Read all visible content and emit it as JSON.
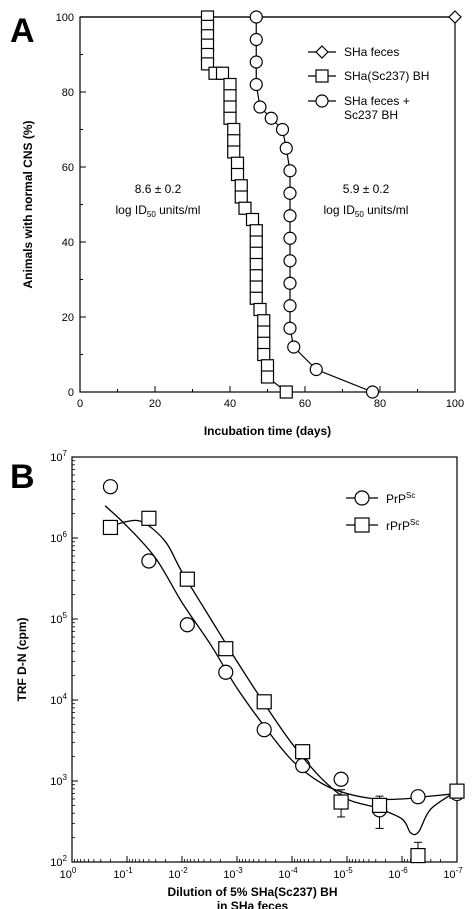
{
  "panels": {
    "a_letter": "A",
    "b_letter": "B"
  },
  "chart_data": [
    {
      "type": "line",
      "panel": "A",
      "xlabel": "Incubation time (days)",
      "ylabel": "Animals with normal CNS (%)",
      "xlim": [
        0,
        100
      ],
      "ylim": [
        0,
        100
      ],
      "xticks": [
        0,
        20,
        40,
        60,
        80,
        100
      ],
      "yticks": [
        0,
        20,
        40,
        60,
        80,
        100
      ],
      "grid": false,
      "legend_position": "top-right",
      "legend_entries": [
        {
          "marker": "diamond",
          "lines": [
            "SHa feces"
          ]
        },
        {
          "marker": "square",
          "lines": [
            "SHa(Sc237) BH"
          ]
        },
        {
          "marker": "circle",
          "lines": [
            "SHa feces +",
            "Sc237 BH"
          ]
        }
      ],
      "annotations": [
        {
          "line1": "8.6 ± 0.2",
          "line2_pre": "log ID",
          "line2_sub": "50",
          "line2_post": " units/ml"
        },
        {
          "line1": "5.9 ± 0.2",
          "line2_pre": "log ID",
          "line2_sub": "50",
          "line2_post": " units/ml"
        }
      ],
      "series": [
        {
          "name": "SHa feces",
          "marker": "diamond",
          "points": [
            [
              0,
              100
            ],
            [
              100,
              100
            ]
          ],
          "marker_points": [
            [
              100,
              100
            ]
          ]
        },
        {
          "name": "SHa(Sc237) BH",
          "marker": "square",
          "points": [
            [
              34,
              100
            ],
            [
              34,
              97.5
            ],
            [
              34,
              95
            ],
            [
              34,
              92.5
            ],
            [
              34,
              90
            ],
            [
              34,
              87.5
            ],
            [
              36,
              85
            ],
            [
              38,
              85
            ],
            [
              40,
              82
            ],
            [
              40,
              79
            ],
            [
              40,
              76
            ],
            [
              40,
              73
            ],
            [
              41,
              70
            ],
            [
              41,
              67
            ],
            [
              41,
              64
            ],
            [
              42,
              61
            ],
            [
              42,
              58
            ],
            [
              43,
              55
            ],
            [
              43,
              52
            ],
            [
              44,
              49
            ],
            [
              46,
              46
            ],
            [
              47,
              43
            ],
            [
              47,
              40
            ],
            [
              47,
              37
            ],
            [
              47,
              34
            ],
            [
              47,
              31
            ],
            [
              47,
              28
            ],
            [
              47,
              25
            ],
            [
              48,
              22
            ],
            [
              49,
              19
            ],
            [
              49,
              16
            ],
            [
              49,
              13
            ],
            [
              49,
              10
            ],
            [
              50,
              7
            ],
            [
              50,
              4
            ],
            [
              55,
              0
            ]
          ]
        },
        {
          "name": "SHa feces + Sc237 BH",
          "marker": "circle",
          "points": [
            [
              47,
              100
            ],
            [
              47,
              94
            ],
            [
              47,
              88
            ],
            [
              47,
              82
            ],
            [
              48,
              76
            ],
            [
              51,
              73
            ],
            [
              54,
              70
            ],
            [
              55,
              65
            ],
            [
              56,
              59
            ],
            [
              56,
              53
            ],
            [
              56,
              47
            ],
            [
              56,
              41
            ],
            [
              56,
              35
            ],
            [
              56,
              29
            ],
            [
              56,
              23
            ],
            [
              56,
              17
            ],
            [
              57,
              12
            ],
            [
              63,
              6
            ],
            [
              78,
              0
            ]
          ]
        }
      ]
    },
    {
      "type": "scatter",
      "panel": "B",
      "xlabel_lines": [
        "Dilution of 5% SHa(Sc237) BH",
        "in SHa feces"
      ],
      "ylabel": "TRF D-N (cpm)",
      "x_scale": "log-reversed",
      "y_scale": "log",
      "xlim": [
        1,
        1e-07
      ],
      "ylim": [
        100,
        10000000
      ],
      "xtick_labels": [
        {
          "base": "10",
          "exp": "0"
        },
        {
          "base": "10",
          "exp": "-1"
        },
        {
          "base": "10",
          "exp": "-2"
        },
        {
          "base": "10",
          "exp": "-3"
        },
        {
          "base": "10",
          "exp": "-4"
        },
        {
          "base": "10",
          "exp": "-5"
        },
        {
          "base": "10",
          "exp": "-6"
        },
        {
          "base": "10",
          "exp": "-7"
        }
      ],
      "ytick_labels": [
        {
          "base": "10",
          "exp": "2"
        },
        {
          "base": "10",
          "exp": "3"
        },
        {
          "base": "10",
          "exp": "4"
        },
        {
          "base": "10",
          "exp": "5"
        },
        {
          "base": "10",
          "exp": "6"
        },
        {
          "base": "10",
          "exp": "7"
        }
      ],
      "grid": false,
      "legend_position": "top-right",
      "legend_entries": [
        {
          "marker": "circle",
          "text": "PrP",
          "sup": "Sc"
        },
        {
          "marker": "square",
          "text": "rPrP",
          "sup": "Sc"
        }
      ],
      "series": [
        {
          "name": "PrPSc",
          "marker": "circle",
          "points": [
            {
              "x": 0.2,
              "y": 4300000
            },
            {
              "x": 0.04,
              "y": 520000
            },
            {
              "x": 0.008,
              "y": 85000
            },
            {
              "x": 0.0016,
              "y": 22000
            },
            {
              "x": 0.00032,
              "y": 4300
            },
            {
              "x": 6.4e-05,
              "y": 1550
            },
            {
              "x": 1.28e-05,
              "y": 1050
            },
            {
              "x": 2.56e-06,
              "y": 440,
              "err": [
                260,
                650
              ]
            },
            {
              "x": 5.12e-07,
              "y": 640
            },
            {
              "x": 1e-07,
              "y": 700
            }
          ],
          "fit": [
            [
              0.25,
              2500000
            ],
            [
              0.1,
              1400000
            ],
            [
              0.03,
              560000
            ],
            [
              0.01,
              160000
            ],
            [
              0.003,
              48000
            ],
            [
              0.001,
              14000
            ],
            [
              0.0003,
              4500
            ],
            [
              0.0001,
              1800
            ],
            [
              3e-05,
              950
            ],
            [
              1e-05,
              700
            ],
            [
              3e-06,
              600
            ],
            [
              1e-06,
              600
            ],
            [
              3e-07,
              650
            ],
            [
              1e-07,
              700
            ]
          ]
        },
        {
          "name": "rPrPSc",
          "marker": "square",
          "points": [
            {
              "x": 0.2,
              "y": 1350000
            },
            {
              "x": 0.04,
              "y": 1750000
            },
            {
              "x": 0.008,
              "y": 310000
            },
            {
              "x": 0.0016,
              "y": 43000
            },
            {
              "x": 0.00032,
              "y": 9500
            },
            {
              "x": 6.4e-05,
              "y": 2300
            },
            {
              "x": 1.28e-05,
              "y": 550,
              "err": [
                360,
                780
              ]
            },
            {
              "x": 2.56e-06,
              "y": 500
            },
            {
              "x": 5.12e-07,
              "y": 120,
              "err": [
                100,
                175
              ]
            },
            {
              "x": 1e-07,
              "y": 750
            }
          ],
          "fit": [
            [
              0.25,
              1300000
            ],
            [
              0.1,
              1600000
            ],
            [
              0.05,
              1550000
            ],
            [
              0.02,
              900000
            ],
            [
              0.01,
              380000
            ],
            [
              0.003,
              100000
            ],
            [
              0.001,
              30000
            ],
            [
              0.0003,
              8500
            ],
            [
              0.0001,
              2900
            ],
            [
              3e-05,
              1100
            ],
            [
              1e-05,
              600
            ],
            [
              3e-06,
              470
            ],
            [
              1e-06,
              340
            ],
            [
              7e-07,
              230
            ],
            [
              5e-07,
              235
            ],
            [
              3e-07,
              450
            ],
            [
              1e-07,
              750
            ]
          ]
        }
      ]
    }
  ]
}
